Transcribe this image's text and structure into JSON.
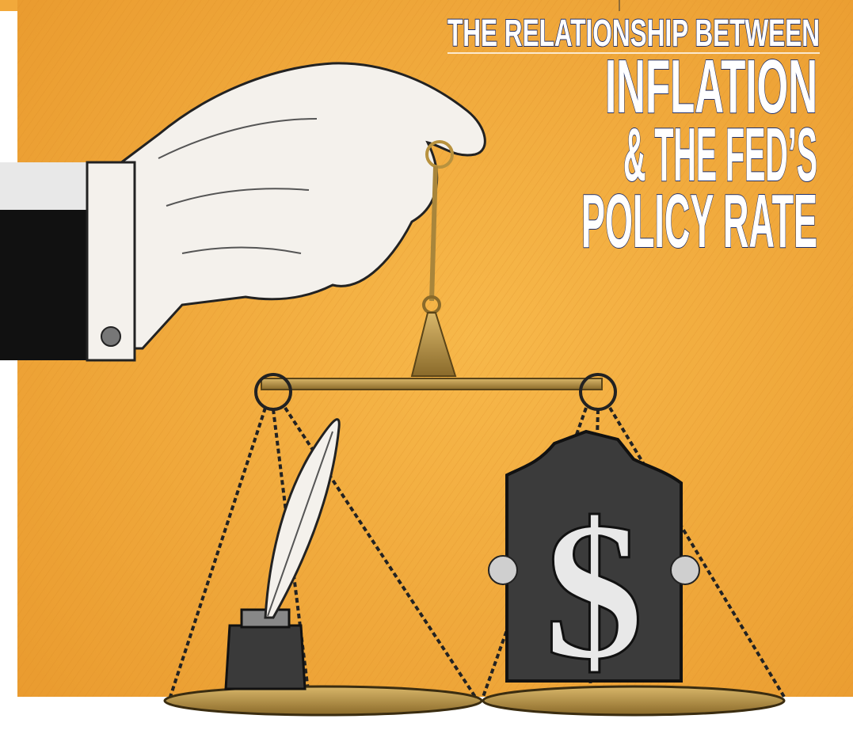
{
  "header": {
    "kicker": "THE RELATIONSHIP BETWEEN",
    "title_lines": [
      "INFLATION",
      "& THE FED’S",
      "POLICY RATE"
    ]
  }
}
